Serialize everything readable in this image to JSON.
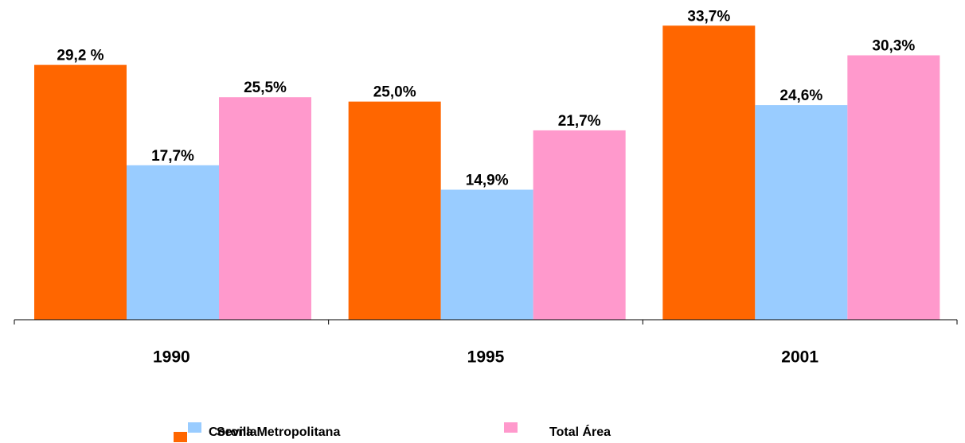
{
  "chart_data": {
    "type": "bar",
    "categories": [
      "1990",
      "1995",
      "2001"
    ],
    "series": [
      {
        "name": "Sevilla",
        "color": "#ff6600",
        "values": [
          29.2,
          25.0,
          33.7
        ],
        "value_labels": [
          "29,2 %",
          "25,0%",
          "33,7%"
        ]
      },
      {
        "name": "Corona Metropolitana",
        "color": "#99ccff",
        "values": [
          17.7,
          14.9,
          24.6
        ],
        "value_labels": [
          "17,7%",
          "14,9%",
          "24,6%"
        ]
      },
      {
        "name": "Total Área",
        "color": "#ff99cc",
        "values": [
          25.5,
          21.7,
          30.3
        ],
        "value_labels": [
          "25,5%",
          "21,7%",
          "30,3%"
        ]
      }
    ],
    "ylim": [
      0,
      36
    ]
  }
}
